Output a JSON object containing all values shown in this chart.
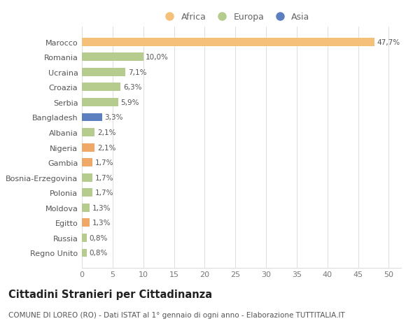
{
  "categories": [
    "Regno Unito",
    "Russia",
    "Egitto",
    "Moldova",
    "Polonia",
    "Bosnia-Erzegovina",
    "Gambia",
    "Nigeria",
    "Albania",
    "Bangladesh",
    "Serbia",
    "Croazia",
    "Ucraina",
    "Romania",
    "Marocco"
  ],
  "values": [
    0.8,
    0.8,
    1.3,
    1.3,
    1.7,
    1.7,
    1.7,
    2.1,
    2.1,
    3.3,
    5.9,
    6.3,
    7.1,
    10.0,
    47.7
  ],
  "labels": [
    "0,8%",
    "0,8%",
    "1,3%",
    "1,3%",
    "1,7%",
    "1,7%",
    "1,7%",
    "2,1%",
    "2,1%",
    "3,3%",
    "5,9%",
    "6,3%",
    "7,1%",
    "10,0%",
    "47,7%"
  ],
  "colors": [
    "#b5cc8e",
    "#b5cc8e",
    "#f0a868",
    "#b5cc8e",
    "#b5cc8e",
    "#b5cc8e",
    "#f0a868",
    "#f0a868",
    "#b5cc8e",
    "#5b7fbf",
    "#b5cc8e",
    "#b5cc8e",
    "#b5cc8e",
    "#b5cc8e",
    "#f5c07a"
  ],
  "legend_labels": [
    "Africa",
    "Europa",
    "Asia"
  ],
  "legend_colors": [
    "#f5c07a",
    "#b5cc8e",
    "#5b7fbf"
  ],
  "title": "Cittadini Stranieri per Cittadinanza",
  "subtitle": "COMUNE DI LOREO (RO) - Dati ISTAT al 1° gennaio di ogni anno - Elaborazione TUTTITALIA.IT",
  "xlim": [
    0,
    52
  ],
  "xticks": [
    0,
    5,
    10,
    15,
    20,
    25,
    30,
    35,
    40,
    45,
    50
  ],
  "background_color": "#ffffff",
  "grid_color": "#dddddd",
  "bar_height": 0.55,
  "title_fontsize": 10.5,
  "subtitle_fontsize": 7.5,
  "tick_fontsize": 8,
  "label_fontsize": 7.5,
  "legend_fontsize": 9
}
